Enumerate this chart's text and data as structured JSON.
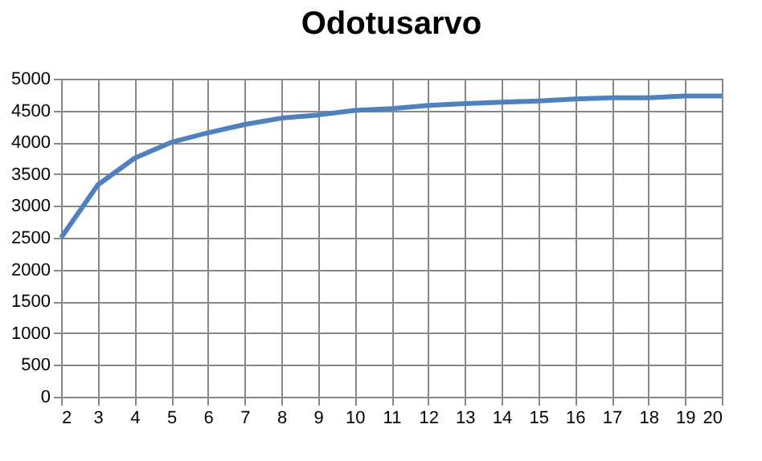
{
  "chart_data": {
    "type": "line",
    "title": "Odotusarvo",
    "categories": [
      "2",
      "3",
      "4",
      "5",
      "6",
      "7",
      "8",
      "9",
      "10",
      "11",
      "12",
      "13",
      "14",
      "15",
      "16",
      "17",
      "18",
      "19",
      "20"
    ],
    "series": [
      {
        "color": "#4f81bd",
        "values": [
          2500,
          3330,
          3750,
          4000,
          4150,
          4280,
          4380,
          4430,
          4500,
          4530,
          4580,
          4610,
          4630,
          4650,
          4680,
          4700,
          4700,
          4730,
          4730
        ]
      }
    ],
    "ylim": [
      0,
      5000
    ],
    "yticks": [
      0,
      500,
      1000,
      1500,
      2000,
      2500,
      3000,
      3500,
      4000,
      4500,
      5000
    ],
    "grid": true,
    "legend": false,
    "marker": "none",
    "line_style": "solid"
  }
}
